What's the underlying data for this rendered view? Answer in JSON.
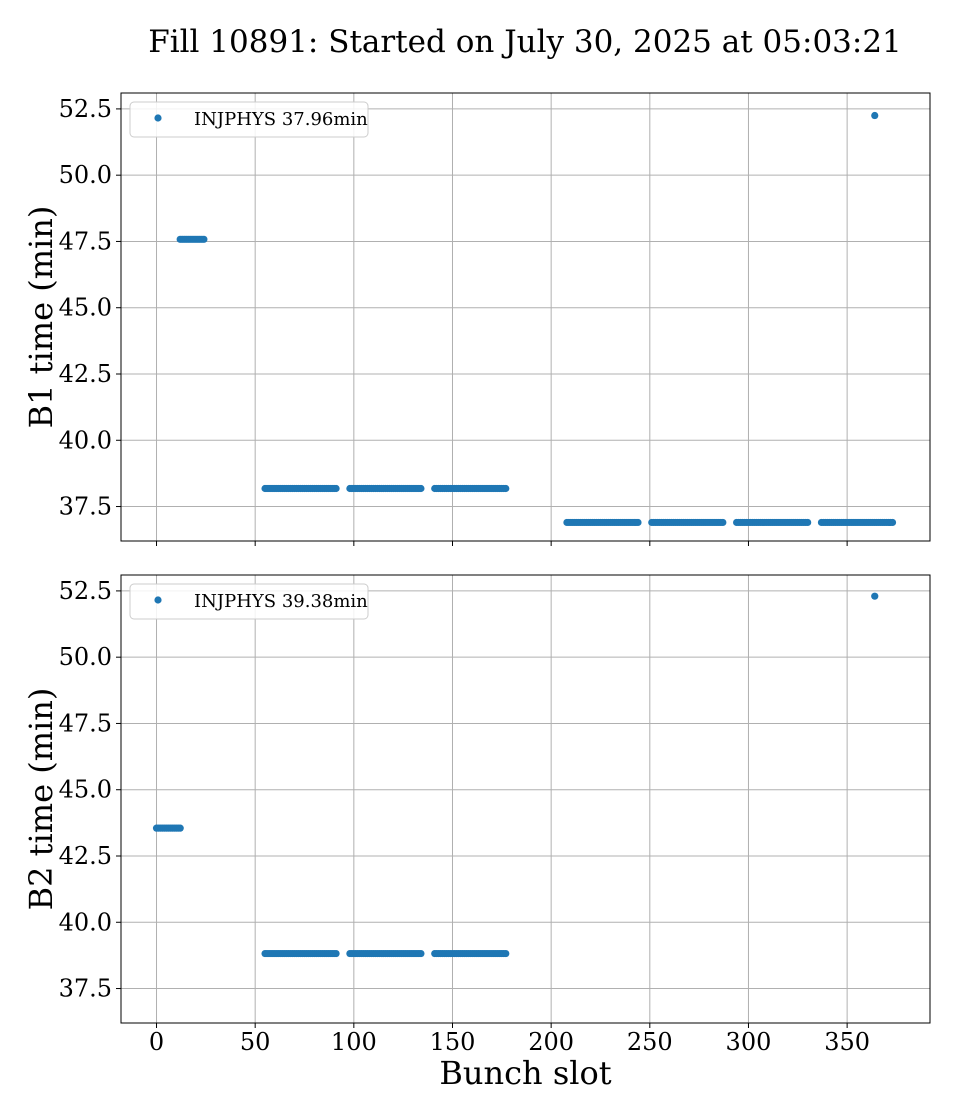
{
  "title": "Fill 10891: Started on July 30, 2025 at 05:03:21",
  "chart_data": [
    {
      "type": "scatter",
      "ylabel": "B1 time (min)",
      "xlabel": "",
      "xlim": [
        -18,
        392
      ],
      "ylim": [
        36.2,
        53.1
      ],
      "xticks": [
        0,
        50,
        100,
        150,
        200,
        250,
        300,
        350
      ],
      "xtick_labels": [
        "0",
        "50",
        "100",
        "150",
        "200",
        "250",
        "300",
        "350"
      ],
      "yticks": [
        37.5,
        40.0,
        42.5,
        45.0,
        47.5,
        50.0,
        52.5
      ],
      "ytick_labels": [
        "37.5",
        "40.0",
        "42.5",
        "45.0",
        "47.5",
        "50.0",
        "52.5"
      ],
      "show_xtick_labels": false,
      "grid": true,
      "legend_loc": "upper-left",
      "color": "#1f77b4",
      "series": [
        {
          "name": "INJPHYS 37.96min",
          "segments": [
            {
              "x_start": 12,
              "x_end": 24,
              "y": 47.58
            },
            {
              "x_start": 55,
              "x_end": 91,
              "y": 38.18
            },
            {
              "x_start": 98,
              "x_end": 134,
              "y": 38.18
            },
            {
              "x_start": 141,
              "x_end": 177,
              "y": 38.18
            },
            {
              "x_start": 208,
              "x_end": 244,
              "y": 36.9
            },
            {
              "x_start": 251,
              "x_end": 287,
              "y": 36.9
            },
            {
              "x_start": 294,
              "x_end": 330,
              "y": 36.9
            },
            {
              "x_start": 337,
              "x_end": 373,
              "y": 36.9
            }
          ],
          "points": [
            {
              "x": 364,
              "y": 52.25
            }
          ]
        }
      ]
    },
    {
      "type": "scatter",
      "ylabel": "B2 time (min)",
      "xlabel": "Bunch slot",
      "xlim": [
        -18,
        392
      ],
      "ylim": [
        36.2,
        53.1
      ],
      "xticks": [
        0,
        50,
        100,
        150,
        200,
        250,
        300,
        350
      ],
      "xtick_labels": [
        "0",
        "50",
        "100",
        "150",
        "200",
        "250",
        "300",
        "350"
      ],
      "yticks": [
        37.5,
        40.0,
        42.5,
        45.0,
        47.5,
        50.0,
        52.5
      ],
      "ytick_labels": [
        "37.5",
        "40.0",
        "42.5",
        "45.0",
        "47.5",
        "50.0",
        "52.5"
      ],
      "show_xtick_labels": true,
      "grid": true,
      "legend_loc": "upper-left",
      "color": "#1f77b4",
      "series": [
        {
          "name": "INJPHYS 39.38min",
          "segments": [
            {
              "x_start": 0,
              "x_end": 12,
              "y": 43.55
            },
            {
              "x_start": 55,
              "x_end": 91,
              "y": 38.82
            },
            {
              "x_start": 98,
              "x_end": 134,
              "y": 38.82
            },
            {
              "x_start": 141,
              "x_end": 177,
              "y": 38.82
            }
          ],
          "points": [
            {
              "x": 364,
              "y": 52.3
            }
          ]
        }
      ]
    }
  ]
}
